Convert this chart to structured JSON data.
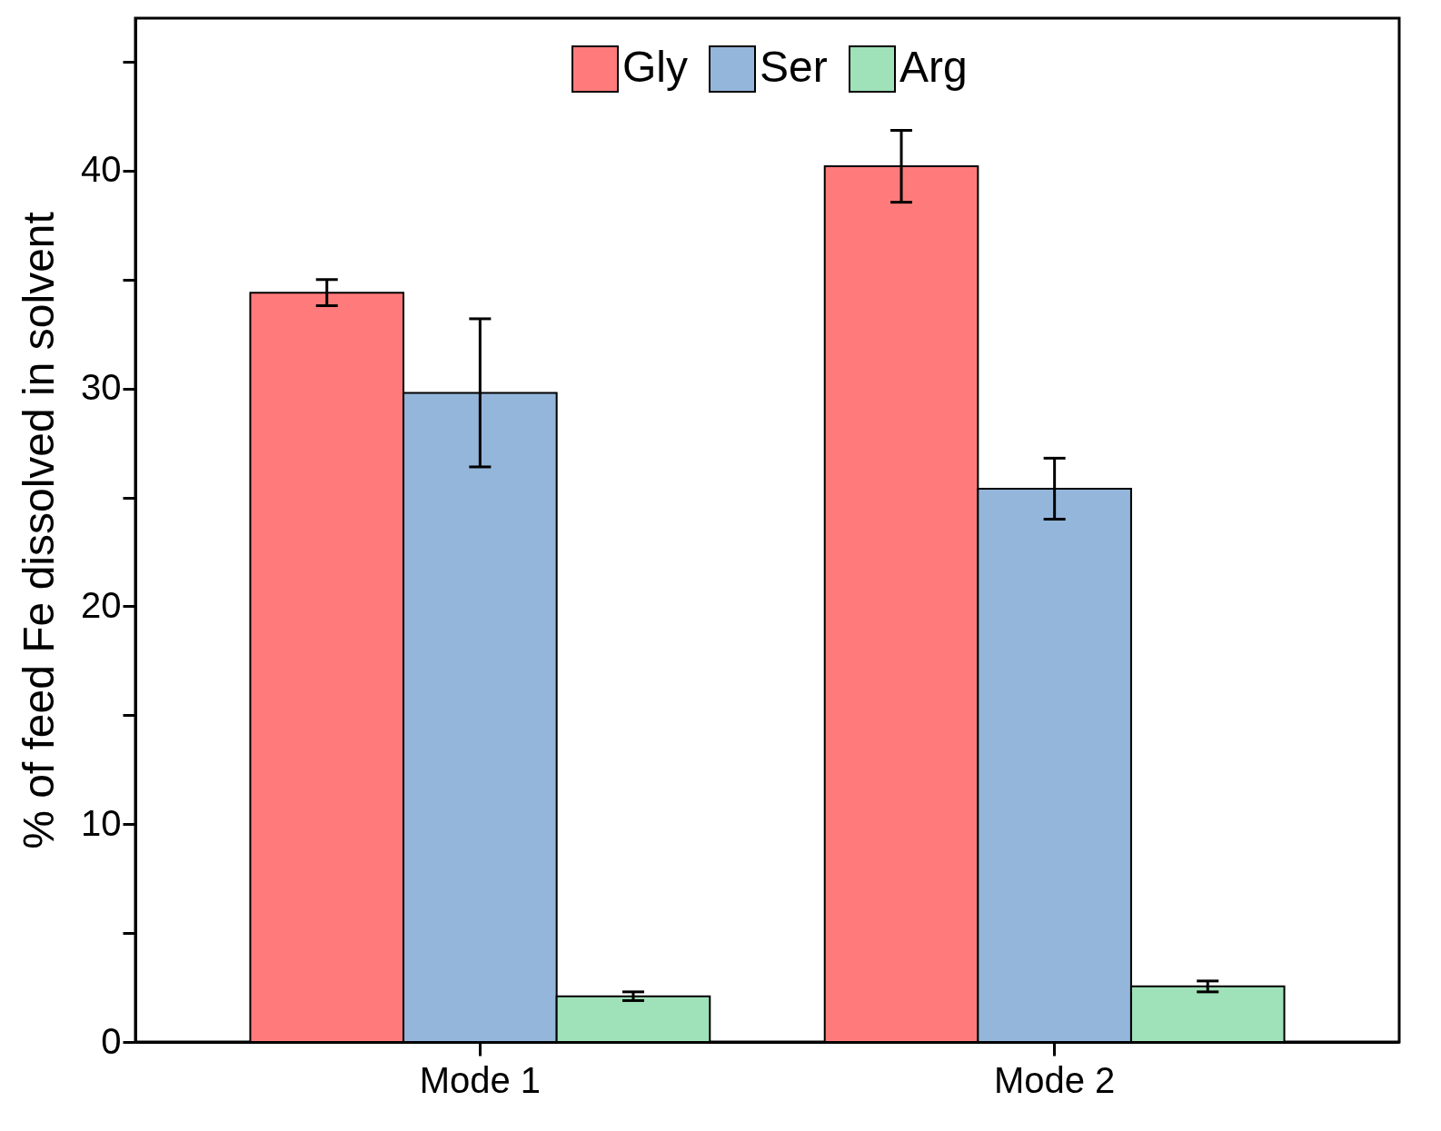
{
  "chart_data": {
    "type": "bar",
    "ylabel": "% of feed Fe dissolved in solvent",
    "categories": [
      "Mode 1",
      "Mode 2"
    ],
    "series": [
      {
        "name": "Gly",
        "color": "#ff7b7b",
        "values": [
          34.4,
          40.2
        ],
        "errors": [
          0.6,
          1.65
        ]
      },
      {
        "name": "Ser",
        "color": "#94b6da",
        "values": [
          29.8,
          25.4
        ],
        "errors": [
          3.4,
          1.4
        ]
      },
      {
        "name": "Arg",
        "color": "#9fe1b8",
        "values": [
          2.1,
          2.55
        ],
        "errors": [
          0.2,
          0.25
        ]
      }
    ],
    "ylim": [
      0,
      47
    ],
    "yticks": [
      0,
      {
        "value": 5,
        "label": null
      },
      10,
      {
        "value": 15,
        "label": null
      },
      20,
      {
        "value": 25,
        "label": null
      },
      30,
      {
        "value": 35,
        "label": null
      },
      40,
      {
        "value": 45,
        "label": null
      }
    ],
    "grid": false,
    "legend": "top"
  }
}
